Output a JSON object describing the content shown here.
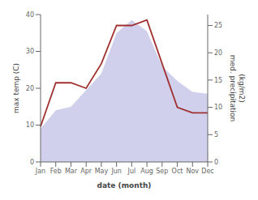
{
  "chart_data": {
    "type": "area",
    "categories": [
      "Jan",
      "Feb",
      "Mar",
      "Apr",
      "May",
      "Jun",
      "Jul",
      "Aug",
      "Sep",
      "Oct",
      "Nov",
      "Dec"
    ],
    "series": [
      {
        "type": "area",
        "color": "#aaaadd",
        "values": [
          9,
          14,
          15,
          19.5,
          24,
          35,
          38.5,
          35.5,
          26,
          22,
          19,
          18.5
        ]
      },
      {
        "type": "line",
        "color": "#a03030",
        "axis": "y2",
        "values": [
          6.5,
          14.5,
          14.5,
          13.5,
          18,
          25,
          25,
          26,
          18,
          10,
          9,
          9
        ]
      }
    ],
    "xlabel": "date (month)",
    "ylabel": "max temp (C)",
    "y2label": "med. precipitation\n(kg/m2)",
    "ylim": [
      0,
      40
    ],
    "yticks": [
      0,
      10,
      20,
      30,
      40
    ],
    "y2lim": [
      0,
      27
    ],
    "y2ticks": [
      0,
      5,
      10,
      15,
      20,
      25
    ],
    "grid": false
  }
}
